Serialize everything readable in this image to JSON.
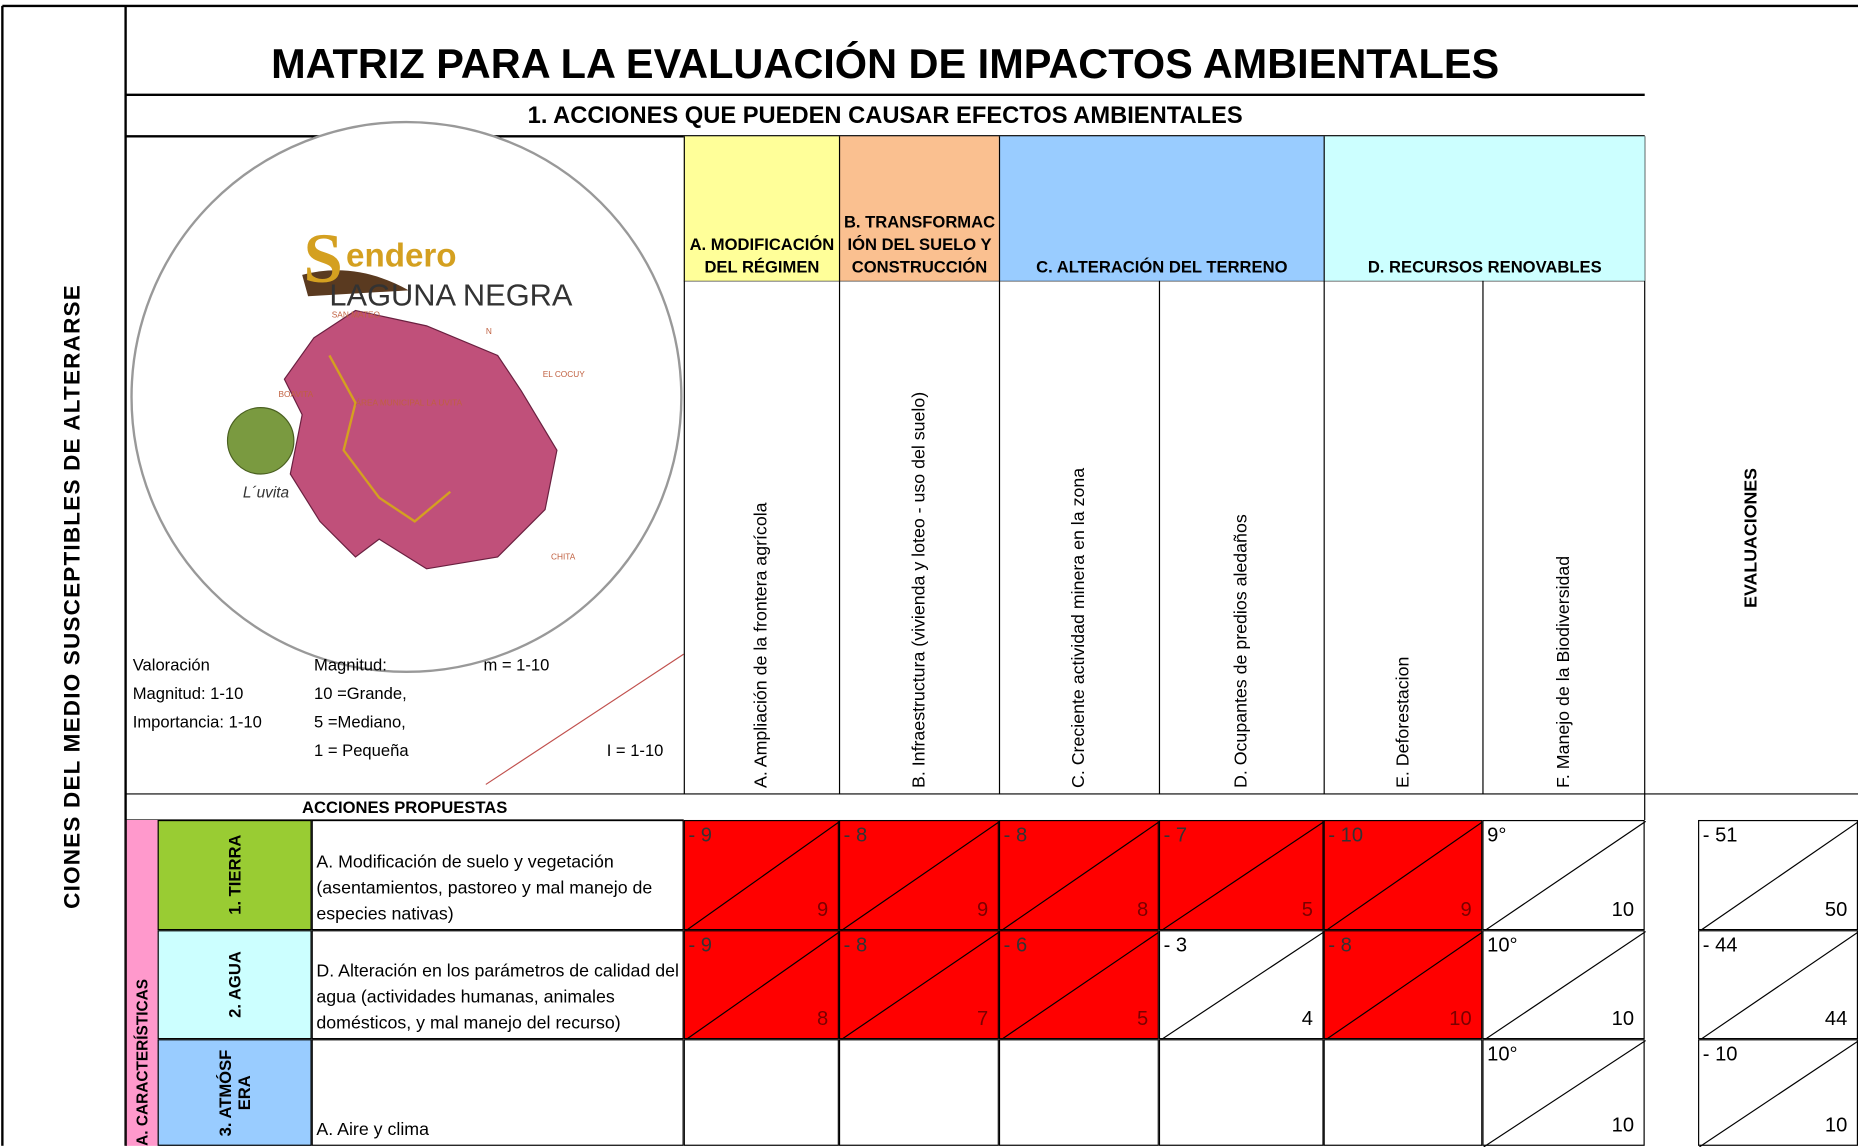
{
  "side_label": "CIONES DEL MEDIO SUSCEPTIBLES DE ALTERARSE",
  "title": "MATRIZ PARA LA EVALUACIÓN DE IMPACTOS AMBIENTALES",
  "subtitle": "1. ACCIONES QUE PUEDEN CAUSAR EFECTOS AMBIENTALES",
  "logo": {
    "initial": "S",
    "word": "endero",
    "place": "LAGUNA NEGRA",
    "brand": "L´uvita",
    "map_labels": [
      "SAN MATEO",
      "BOAVITA",
      "EL COCUY",
      "CHITA",
      "N",
      "ÁREA MUNICIPAL LA UVITA"
    ]
  },
  "legend": {
    "valoracion": "Valoración",
    "magnitud_range": "Magnitud: 1-10",
    "importancia_range": "Importancia: 1-10",
    "magnitud": "Magnitud:",
    "grande": "10 =Grande,",
    "mediano": "5 =Mediano,",
    "pequena": "1 = Pequeña",
    "m": "m = 1-10",
    "i": "I = 1-10"
  },
  "groups": [
    {
      "label": "A. MODIFICACIÓN DEL RÉGIMEN",
      "color": "#ffff99"
    },
    {
      "label": "B. TRANSFORMACIÓN DEL SUELO Y CONSTRUCCIÓN",
      "color": "#fac090"
    },
    {
      "label": "C. ALTERACIÓN DEL TERRENO",
      "color": "#99ccff"
    },
    {
      "label": "D. RECURSOS RENOVABLES",
      "color": "#ccffff"
    }
  ],
  "columns": [
    "A. Ampliación de la frontera agrícola",
    "B. Infraestructura (vivienda y loteo - uso del suelo)",
    "C. Creciente actividad minera en la zona",
    "D. Ocupantes de predios aledaños",
    "E. Deforestacion",
    "F. Manejo de la Biodiversidad"
  ],
  "evaluations_header": "EVALUACIONES",
  "acciones_header": "ACCIONES PROPUESTAS",
  "category": "A. CARACTERÍSTICAS",
  "rows": [
    {
      "group": "1. TIERRA",
      "color": "#99cc33",
      "description": "A. Modificación de suelo y vegetación (asentamientos, pastoreo y mal manejo de especies nativas)",
      "cells": [
        {
          "m": "- 9",
          "i": "9",
          "impact": true
        },
        {
          "m": "- 8",
          "i": "9",
          "impact": true
        },
        {
          "m": "- 8",
          "i": "8",
          "impact": true
        },
        {
          "m": "- 7",
          "i": "5",
          "impact": true
        },
        {
          "m": "- 10",
          "i": "9",
          "impact": true
        },
        {
          "m": "9°",
          "i": "10",
          "impact": false
        }
      ],
      "evaluation": {
        "m": "- 51",
        "i": "50"
      }
    },
    {
      "group": "2. AGUA",
      "color": "#ccffff",
      "description": "D. Alteración en los parámetros de calidad del agua (actividades humanas, animales domésticos, y mal manejo del recurso)",
      "cells": [
        {
          "m": "- 9",
          "i": "8",
          "impact": true
        },
        {
          "m": "- 8",
          "i": "7",
          "impact": true
        },
        {
          "m": "- 6",
          "i": "5",
          "impact": true
        },
        {
          "m": "- 3",
          "i": "4",
          "impact": false
        },
        {
          "m": "- 8",
          "i": "10",
          "impact": true
        },
        {
          "m": "10°",
          "i": "10",
          "impact": false
        }
      ],
      "evaluation": {
        "m": "- 44",
        "i": "44"
      }
    },
    {
      "group": "3. ATMÓSF ERA",
      "color": "#99ccff",
      "description": "A. Aire y clima",
      "cells": [
        null,
        null,
        null,
        null,
        null,
        {
          "m": "10°",
          "i": "10",
          "impact": false
        }
      ],
      "evaluation": {
        "m": "- 10",
        "i": "10"
      }
    }
  ]
}
